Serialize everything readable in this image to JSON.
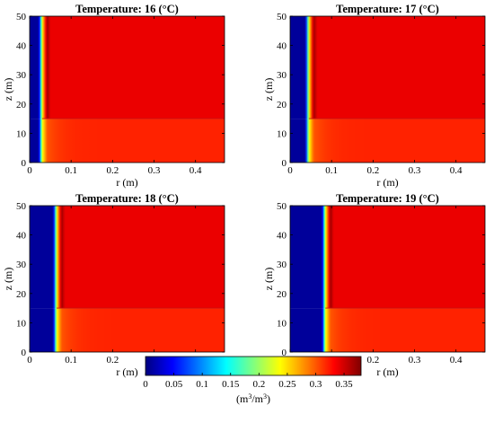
{
  "chart_data": {
    "type": "heatmap",
    "panels": [
      {
        "title": "Temperature: 16 (°C)",
        "front_r": 0.03
      },
      {
        "title": "Temperature: 17 (°C)",
        "front_r": 0.045
      },
      {
        "title": "Temperature: 18 (°C)",
        "front_r": 0.065
      },
      {
        "title": "Temperature: 19 (°C)",
        "front_r": 0.085
      }
    ],
    "xlabel": "r (m)",
    "ylabel": "z (m)",
    "xlim": [
      0,
      0.47
    ],
    "ylim": [
      0,
      50
    ],
    "xticks": [
      "0",
      "0.1",
      "0.2",
      "0.3",
      "0.4"
    ],
    "xtick_values": [
      0,
      0.1,
      0.2,
      0.3,
      0.4
    ],
    "yticks": [
      "0",
      "10",
      "20",
      "30",
      "40",
      "50"
    ],
    "ytick_values": [
      0,
      10,
      20,
      30,
      40,
      50
    ],
    "layer_interface_z": 15,
    "upper_layer_value": 0.34,
    "lower_layer_value": 0.32,
    "colorbar": {
      "label_base": "(m",
      "label_sup1": "3",
      "label_mid": "/m",
      "label_sup2": "3",
      "label_end": ")",
      "ticks": [
        "0",
        "0.05",
        "0.1",
        "0.15",
        "0.2",
        "0.25",
        "0.3",
        "0.35"
      ],
      "tick_values": [
        0,
        0.05,
        0.1,
        0.15,
        0.2,
        0.25,
        0.3,
        0.35
      ],
      "range": [
        0,
        0.38
      ],
      "colormap": "jet",
      "colors": [
        "#00008f",
        "#0000ff",
        "#00ffff",
        "#ffff00",
        "#ff0000",
        "#800000"
      ]
    }
  }
}
